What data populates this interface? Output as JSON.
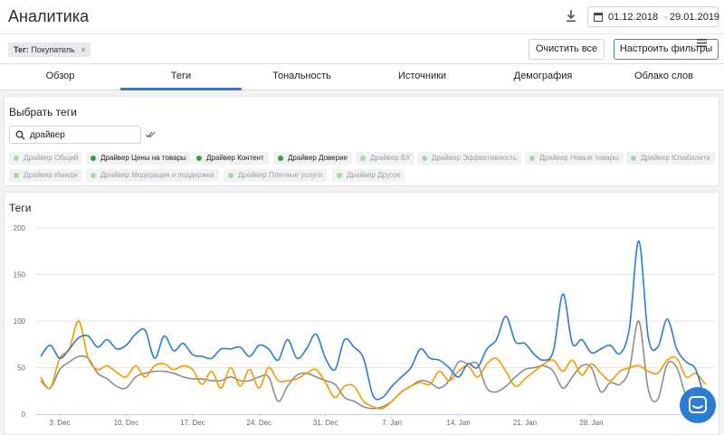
{
  "header": {
    "title": "Аналитика",
    "date_from": "01.12.2018",
    "date_sep": "-",
    "date_to": "29.01.2019"
  },
  "filter": {
    "chip_key": "Тег:",
    "chip_value": "Покупатель",
    "chip_close": "×",
    "clear_label": "Очистить все",
    "configure_label": "Настроить фильтры"
  },
  "tabs": [
    {
      "label": "Обзор",
      "active": false
    },
    {
      "label": "Теги",
      "active": true
    },
    {
      "label": "Тональность",
      "active": false
    },
    {
      "label": "Источники",
      "active": false
    },
    {
      "label": "Демография",
      "active": false
    },
    {
      "label": "Облако слов",
      "active": false
    }
  ],
  "select_tags": {
    "title": "Выбрать теги",
    "search_value": "драйвер",
    "tags": [
      {
        "label": "Драйвер Общий",
        "selected": false
      },
      {
        "label": "Драйвер Цены на товары",
        "selected": true
      },
      {
        "label": "Драйвер Контент",
        "selected": true
      },
      {
        "label": "Драйвер Доверие",
        "selected": true
      },
      {
        "label": "Драйвер БУ",
        "selected": false
      },
      {
        "label": "Драйвер Эффективность",
        "selected": false
      },
      {
        "label": "Драйвер Новые товары",
        "selected": false
      },
      {
        "label": "Драйвер Юзабилити",
        "selected": false
      },
      {
        "label": "Драйвер Имидж",
        "selected": false
      },
      {
        "label": "Драйвер Модерация и поддержка",
        "selected": false
      },
      {
        "label": "Драйвер Платные услуги",
        "selected": false
      },
      {
        "label": "Драйвер Другое",
        "selected": false
      }
    ]
  },
  "chart_panel": {
    "title": "Теги"
  },
  "chart_data": {
    "type": "line",
    "title": "Теги",
    "xlabel": "",
    "ylabel": "",
    "ylim": [
      0,
      200
    ],
    "yticks": [
      0,
      50,
      100,
      150,
      200
    ],
    "grid": true,
    "x_start": "1 Dec",
    "x_tick_labels": [
      "3. Dec",
      "10. Dec",
      "17. Dec",
      "24. Dec",
      "31. Dec",
      "7. Jan",
      "14. Jan",
      "21. Jan",
      "28. Jan"
    ],
    "x_tick_days": [
      2,
      9,
      16,
      23,
      30,
      37,
      44,
      51,
      58
    ],
    "series": [
      {
        "color": "#2b7cd3",
        "values": [
          62,
          74,
          60,
          70,
          82,
          84,
          72,
          80,
          70,
          74,
          86,
          90,
          60,
          84,
          68,
          76,
          64,
          62,
          60,
          70,
          70,
          72,
          62,
          74,
          70,
          58,
          80,
          60,
          70,
          86,
          60,
          48,
          80,
          72,
          60,
          20,
          18,
          30,
          40,
          50,
          70,
          60,
          58,
          50,
          40,
          54,
          50,
          70,
          80,
          105,
          78,
          76,
          64,
          58,
          68,
          129,
          76,
          80,
          66,
          70,
          74,
          65,
          92,
          186,
          82,
          72,
          102,
          70,
          56,
          48,
          14
        ]
      },
      {
        "color": "#f59b00",
        "values": [
          40,
          28,
          60,
          70,
          100,
          60,
          48,
          52,
          45,
          40,
          52,
          40,
          52,
          54,
          48,
          52,
          48,
          32,
          46,
          28,
          50,
          30,
          48,
          28,
          50,
          36,
          36,
          38,
          44,
          48,
          34,
          18,
          30,
          30,
          14,
          8,
          6,
          14,
          24,
          30,
          34,
          32,
          46,
          36,
          46,
          52,
          40,
          54,
          60,
          46,
          30,
          38,
          46,
          54,
          58,
          46,
          58,
          42,
          54,
          44,
          36,
          46,
          50,
          52,
          46,
          44,
          58,
          60,
          40,
          44,
          32
        ]
      },
      {
        "color": "#8e8e8e",
        "values": [
          36,
          28,
          48,
          56,
          62,
          60,
          44,
          38,
          30,
          28,
          40,
          44,
          46,
          46,
          44,
          40,
          38,
          38,
          36,
          36,
          40,
          36,
          36,
          40,
          40,
          14,
          30,
          42,
          44,
          40,
          36,
          32,
          18,
          14,
          8,
          6,
          8,
          14,
          24,
          30,
          36,
          34,
          28,
          36,
          56,
          54,
          54,
          28,
          24,
          30,
          40,
          48,
          50,
          52,
          46,
          28,
          40,
          52,
          50,
          24,
          34,
          32,
          48,
          100,
          26,
          16,
          54,
          50,
          20,
          16,
          14
        ]
      }
    ]
  }
}
